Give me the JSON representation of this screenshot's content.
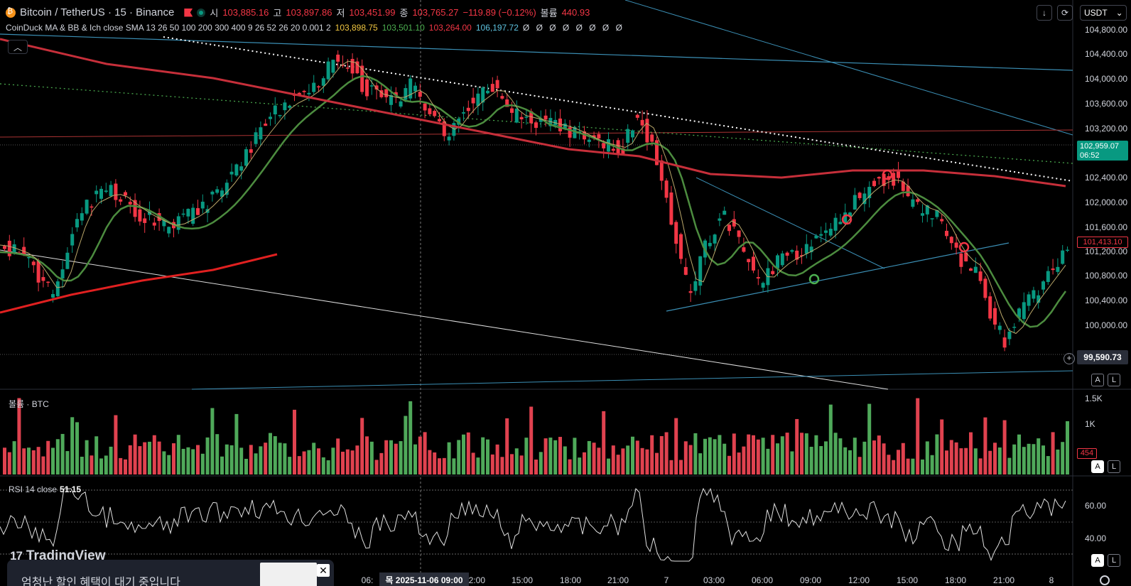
{
  "header": {
    "symbol": "Bitcoin / TetherUS · 15 · Binance",
    "ohlc": [
      {
        "label": "시",
        "value": "103,885.16"
      },
      {
        "label": "고",
        "value": "103,897.86"
      },
      {
        "label": "저",
        "value": "103,451.99"
      },
      {
        "label": "종",
        "value": "103,765.27"
      }
    ],
    "change": "−119.89 (−0.12%)",
    "volume_label": "볼륨",
    "volume_value": "440.93"
  },
  "indicator": {
    "name": "CoinDuck MA & BB & Ich close SMA 13 26 50 100 200 300 400 9 26 52 26 20 0.001 2",
    "v1": "103,898.75",
    "v2": "103,501.10",
    "v3": "103,264.00",
    "v4": "106,197.72",
    "v5": "Ø Ø Ø Ø Ø Ø Ø Ø"
  },
  "controls": {
    "currency": "USDT",
    "collapse_icon": "chevron-up-icon",
    "download_icon": "arrow-down-icon",
    "refresh_icon": "refresh-icon"
  },
  "price_axis": {
    "ticks": [
      "104,800.00",
      "104,400.00",
      "104,000.00",
      "103,600.00",
      "103,200.00",
      "102,400.00",
      "102,000.00",
      "101,600.00",
      "101,200.00",
      "100,800.00",
      "100,400.00",
      "100,000.00"
    ],
    "current_price": "102,959.07",
    "countdown": "06:52",
    "red_tag": "101,413.10",
    "crosshair_price": "99,590.73"
  },
  "volume_pane": {
    "label": "볼륨 · BTC",
    "ticks": [
      "1.5K",
      "1K"
    ],
    "value_tag": "454"
  },
  "rsi_pane": {
    "label": "RSI 14 close",
    "value": "51.15",
    "ticks": [
      "60.00",
      "40.00"
    ]
  },
  "time_axis": {
    "labels": [
      "06:",
      "12:00",
      "15:00",
      "18:00",
      "21:00",
      "7",
      "03:00",
      "06:00",
      "09:00",
      "12:00",
      "15:00",
      "18:00",
      "21:00",
      "8"
    ],
    "crosshair_time": "목 2025-11-06  09:00"
  },
  "buttons": {
    "auto": "A",
    "log": "L"
  },
  "watermark": {
    "text": "TradingView",
    "mark": "17"
  },
  "promo": {
    "text": "엄청난 할인 혜택이 대기 중입니다",
    "close": "✕"
  },
  "colors": {
    "up": "#089981",
    "down": "#f23645",
    "ma_green": "#4c8c3f",
    "ma_red": "#c62f3a",
    "ma_thin": "#bba86a"
  }
}
